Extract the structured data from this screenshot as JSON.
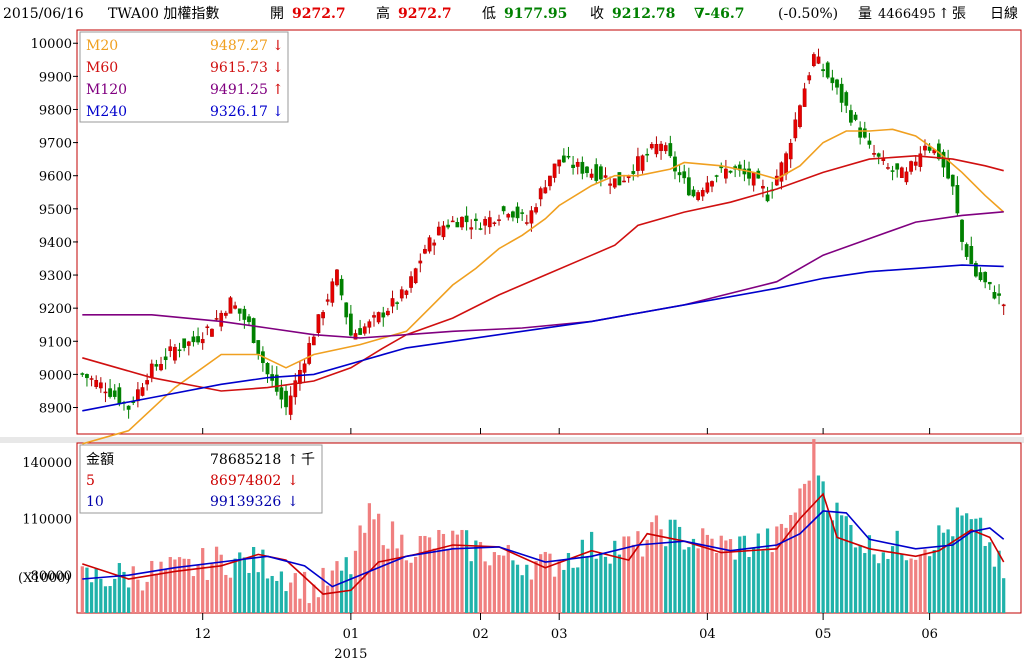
{
  "header": {
    "date": "2015/06/16",
    "symbol": "TWA00 加權指數",
    "open_label": "開",
    "open": "9272.7",
    "high_label": "高",
    "high": "9272.7",
    "low_label": "低",
    "low": "9177.95",
    "close_label": "收",
    "close": "9212.78",
    "change": "∇-46.7",
    "change_pct": "(-0.50%)",
    "volume_label": "量",
    "volume": "4466495",
    "volume_arrow": "↑",
    "volume_unit": "張",
    "period": "日線"
  },
  "colors": {
    "up": "#e60000",
    "up_border": "#b00000",
    "down": "#008000",
    "ma20": "#f0a020",
    "ma60": "#d01010",
    "ma120": "#800080",
    "ma240": "#0000cc",
    "vol_up": "#f08080",
    "vol_down": "#20b2aa",
    "frame": "#c00000",
    "legend_amount": "#000000",
    "legend_5": "#cc0000",
    "legend_10": "#0000aa"
  },
  "price_legend": [
    {
      "name": "M20",
      "value": "9487.27",
      "arrow": "↓",
      "color": "#f0a020"
    },
    {
      "name": "M60",
      "value": "9615.73",
      "arrow": "↓",
      "color": "#d01010"
    },
    {
      "name": "M120",
      "value": "9491.25",
      "arrow": "↑",
      "color": "#800080"
    },
    {
      "name": "M240",
      "value": "9326.17",
      "arrow": "↓",
      "color": "#0000cc"
    }
  ],
  "volume_legend": [
    {
      "name": "金額",
      "value": "78685218",
      "arrow": "↑",
      "unit": "千",
      "color": "#000000"
    },
    {
      "name": "5",
      "value": "86974802",
      "arrow": "↓",
      "unit": "",
      "color": "#cc0000"
    },
    {
      "name": "10",
      "value": "99139326",
      "arrow": "↓",
      "unit": "",
      "color": "#0000aa"
    }
  ],
  "volume_unit_label": "(X1000)",
  "chart_data": {
    "type": "candlestick",
    "price_axis": {
      "min": 8820,
      "max": 10040,
      "ticks": [
        8900,
        9000,
        9100,
        9200,
        9300,
        9400,
        9500,
        9600,
        9700,
        9800,
        9900,
        10000
      ]
    },
    "volume_axis": {
      "min": 60000,
      "max": 150000,
      "ticks": [
        80000,
        110000,
        140000
      ]
    },
    "x_ticks": [
      {
        "label": "12",
        "index": 26
      },
      {
        "label": "01",
        "index": 58
      },
      {
        "label": "02",
        "index": 86
      },
      {
        "label": "03",
        "index": 103
      },
      {
        "label": "04",
        "index": 135
      },
      {
        "label": "05",
        "index": 160
      },
      {
        "label": "06",
        "index": 183
      }
    ],
    "year_label": {
      "label": "2015",
      "index": 58
    },
    "count": 200,
    "ma": {
      "M20": [
        [
          0,
          8790
        ],
        [
          10,
          8830
        ],
        [
          20,
          8960
        ],
        [
          30,
          9060
        ],
        [
          38,
          9060
        ],
        [
          44,
          9020
        ],
        [
          50,
          9060
        ],
        [
          60,
          9090
        ],
        [
          70,
          9130
        ],
        [
          75,
          9200
        ],
        [
          80,
          9270
        ],
        [
          85,
          9320
        ],
        [
          90,
          9380
        ],
        [
          95,
          9420
        ],
        [
          100,
          9470
        ],
        [
          103,
          9510
        ],
        [
          110,
          9570
        ],
        [
          115,
          9600
        ],
        [
          120,
          9600
        ],
        [
          127,
          9620
        ],
        [
          130,
          9640
        ],
        [
          138,
          9630
        ],
        [
          145,
          9610
        ],
        [
          150,
          9590
        ],
        [
          155,
          9630
        ],
        [
          160,
          9700
        ],
        [
          165,
          9735
        ],
        [
          170,
          9735
        ],
        [
          175,
          9740
        ],
        [
          180,
          9720
        ],
        [
          185,
          9670
        ],
        [
          190,
          9610
        ],
        [
          195,
          9540
        ],
        [
          199,
          9490
        ]
      ],
      "M60": [
        [
          0,
          9050
        ],
        [
          15,
          8990
        ],
        [
          30,
          8950
        ],
        [
          40,
          8960
        ],
        [
          50,
          8980
        ],
        [
          58,
          9020
        ],
        [
          65,
          9080
        ],
        [
          70,
          9120
        ],
        [
          80,
          9170
        ],
        [
          90,
          9240
        ],
        [
          100,
          9300
        ],
        [
          110,
          9360
        ],
        [
          115,
          9390
        ],
        [
          120,
          9450
        ],
        [
          130,
          9490
        ],
        [
          140,
          9520
        ],
        [
          150,
          9560
        ],
        [
          160,
          9610
        ],
        [
          170,
          9650
        ],
        [
          180,
          9660
        ],
        [
          188,
          9650
        ],
        [
          195,
          9630
        ],
        [
          199,
          9615
        ]
      ],
      "M120": [
        [
          0,
          9180
        ],
        [
          15,
          9180
        ],
        [
          30,
          9160
        ],
        [
          40,
          9140
        ],
        [
          50,
          9120
        ],
        [
          60,
          9110
        ],
        [
          70,
          9120
        ],
        [
          80,
          9130
        ],
        [
          95,
          9140
        ],
        [
          110,
          9160
        ],
        [
          130,
          9210
        ],
        [
          150,
          9280
        ],
        [
          160,
          9360
        ],
        [
          170,
          9410
        ],
        [
          180,
          9460
        ],
        [
          190,
          9480
        ],
        [
          199,
          9491
        ]
      ],
      "M240": [
        [
          0,
          8890
        ],
        [
          15,
          8930
        ],
        [
          30,
          8970
        ],
        [
          40,
          8990
        ],
        [
          50,
          9000
        ],
        [
          60,
          9040
        ],
        [
          70,
          9080
        ],
        [
          80,
          9100
        ],
        [
          95,
          9130
        ],
        [
          110,
          9160
        ],
        [
          130,
          9210
        ],
        [
          150,
          9260
        ],
        [
          160,
          9290
        ],
        [
          170,
          9310
        ],
        [
          180,
          9320
        ],
        [
          190,
          9330
        ],
        [
          199,
          9326
        ]
      ]
    },
    "volume_ma": {
      "5": [
        [
          0,
          86000
        ],
        [
          10,
          78000
        ],
        [
          20,
          82000
        ],
        [
          30,
          85000
        ],
        [
          38,
          91000
        ],
        [
          44,
          88000
        ],
        [
          48,
          79000
        ],
        [
          52,
          70000
        ],
        [
          58,
          72000
        ],
        [
          64,
          87000
        ],
        [
          72,
          91000
        ],
        [
          80,
          96000
        ],
        [
          90,
          95000
        ],
        [
          100,
          84000
        ],
        [
          110,
          93000
        ],
        [
          118,
          88000
        ],
        [
          122,
          102000
        ],
        [
          130,
          98000
        ],
        [
          138,
          92000
        ],
        [
          150,
          94000
        ],
        [
          155,
          110000
        ],
        [
          160,
          123000
        ],
        [
          163,
          100000
        ],
        [
          170,
          94000
        ],
        [
          180,
          90000
        ],
        [
          185,
          93000
        ],
        [
          192,
          104000
        ],
        [
          196,
          100000
        ],
        [
          199,
          87000
        ]
      ],
      "10": [
        [
          0,
          78000
        ],
        [
          10,
          80000
        ],
        [
          20,
          84000
        ],
        [
          30,
          87000
        ],
        [
          40,
          90000
        ],
        [
          48,
          85000
        ],
        [
          54,
          74000
        ],
        [
          60,
          80000
        ],
        [
          70,
          90000
        ],
        [
          80,
          94000
        ],
        [
          90,
          95000
        ],
        [
          100,
          87000
        ],
        [
          110,
          90000
        ],
        [
          120,
          96000
        ],
        [
          130,
          98000
        ],
        [
          140,
          93000
        ],
        [
          150,
          96000
        ],
        [
          155,
          102000
        ],
        [
          160,
          114000
        ],
        [
          165,
          113000
        ],
        [
          170,
          99000
        ],
        [
          180,
          94000
        ],
        [
          188,
          96000
        ],
        [
          192,
          103000
        ],
        [
          196,
          105000
        ],
        [
          199,
          99000
        ]
      ]
    }
  }
}
